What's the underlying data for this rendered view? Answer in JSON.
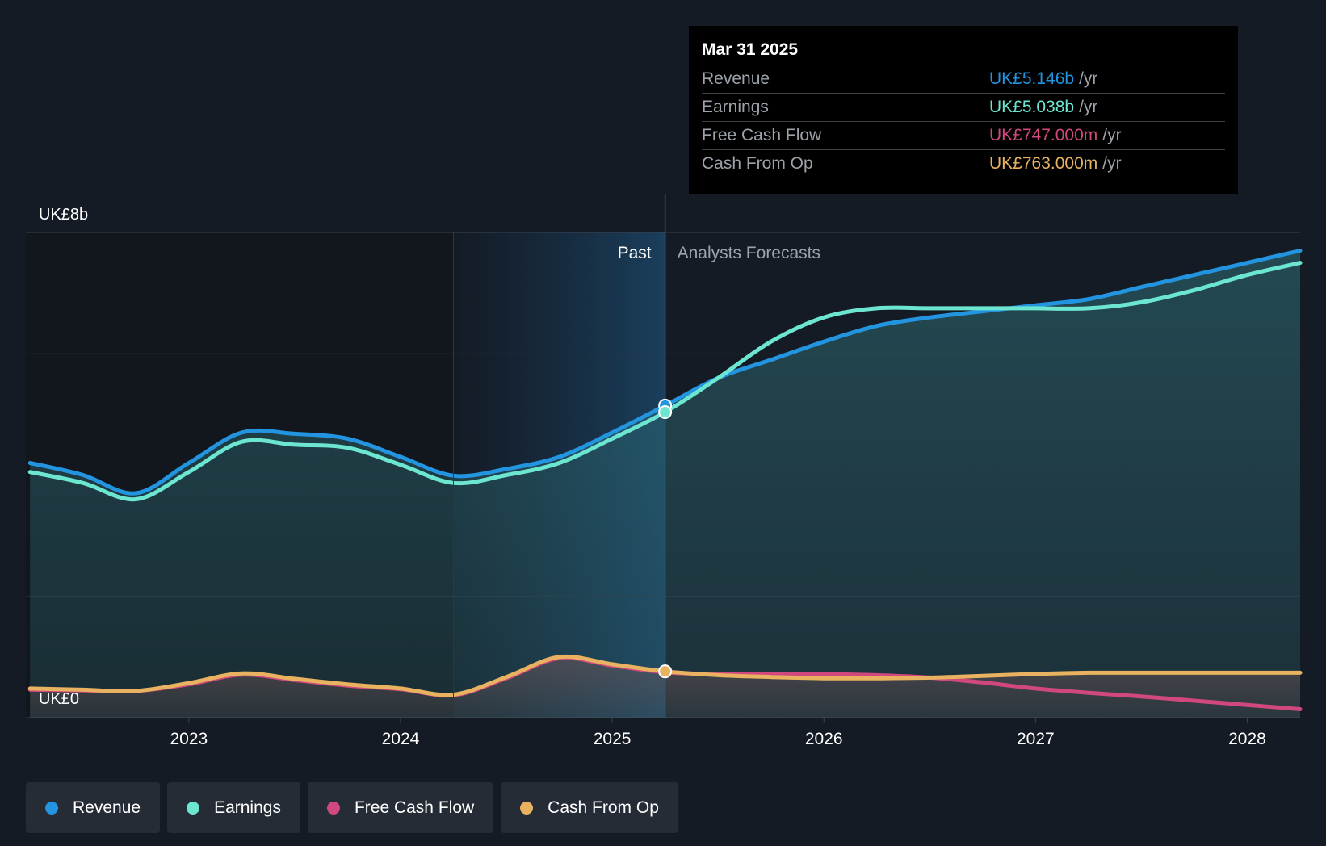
{
  "colors": {
    "revenue": "#2394df",
    "earnings": "#6ce6d0",
    "free_cash_flow": "#d0487d",
    "cash_from_op": "#e8b260",
    "background": "#151b24"
  },
  "tooltip": {
    "date": "Mar 31 2025",
    "rows": [
      {
        "label": "Revenue",
        "value": "UK£5.146b",
        "unit": "/yr"
      },
      {
        "label": "Earnings",
        "value": "UK£5.038b",
        "unit": "/yr"
      },
      {
        "label": "Free Cash Flow",
        "value": "UK£747.000m",
        "unit": "/yr"
      },
      {
        "label": "Cash From Op",
        "value": "UK£763.000m",
        "unit": "/yr"
      }
    ]
  },
  "legend": [
    {
      "label": "Revenue",
      "icon": "circle"
    },
    {
      "label": "Earnings",
      "icon": "circle"
    },
    {
      "label": "Free Cash Flow",
      "icon": "circle"
    },
    {
      "label": "Cash From Op",
      "icon": "circle"
    }
  ],
  "chart_data": {
    "type": "line",
    "title": "",
    "ylabel_top": "UK£8b",
    "ylabel_bottom": "UK£0",
    "ylim": [
      0,
      8
    ],
    "xlim": [
      2022.23,
      2028.25
    ],
    "x_ticks": [
      2023,
      2024,
      2025,
      2026,
      2027,
      2028
    ],
    "x_tick_labels": [
      "2023",
      "2024",
      "2025",
      "2026",
      "2027",
      "2028"
    ],
    "past_label": "Past",
    "forecast_label": "Analysts Forecasts",
    "past_highlight_start": 2024.25,
    "present": 2025.25,
    "series": [
      {
        "name": "Revenue",
        "key": "revenue",
        "points": [
          [
            2022.25,
            4.2
          ],
          [
            2022.5,
            4.0
          ],
          [
            2022.75,
            3.7
          ],
          [
            2023.0,
            4.2
          ],
          [
            2023.25,
            4.7
          ],
          [
            2023.5,
            4.68
          ],
          [
            2023.75,
            4.6
          ],
          [
            2024.0,
            4.3
          ],
          [
            2024.25,
            3.99
          ],
          [
            2024.5,
            4.1
          ],
          [
            2024.75,
            4.3
          ],
          [
            2025.0,
            4.7
          ],
          [
            2025.25,
            5.146
          ],
          [
            2025.5,
            5.6
          ],
          [
            2025.75,
            5.9
          ],
          [
            2026.0,
            6.2
          ],
          [
            2026.25,
            6.46
          ],
          [
            2026.5,
            6.6
          ],
          [
            2026.75,
            6.7
          ],
          [
            2027.0,
            6.8
          ],
          [
            2027.25,
            6.9
          ],
          [
            2027.5,
            7.1
          ],
          [
            2027.75,
            7.3
          ],
          [
            2028.0,
            7.5
          ],
          [
            2028.25,
            7.7
          ]
        ]
      },
      {
        "name": "Earnings",
        "key": "earnings",
        "points": [
          [
            2022.25,
            4.05
          ],
          [
            2022.5,
            3.87
          ],
          [
            2022.75,
            3.6
          ],
          [
            2023.0,
            4.05
          ],
          [
            2023.25,
            4.55
          ],
          [
            2023.5,
            4.5
          ],
          [
            2023.75,
            4.45
          ],
          [
            2024.0,
            4.17
          ],
          [
            2024.25,
            3.87
          ],
          [
            2024.5,
            4.0
          ],
          [
            2024.75,
            4.2
          ],
          [
            2025.0,
            4.6
          ],
          [
            2025.25,
            5.038
          ],
          [
            2025.5,
            5.6
          ],
          [
            2025.75,
            6.2
          ],
          [
            2026.0,
            6.6
          ],
          [
            2026.25,
            6.75
          ],
          [
            2026.5,
            6.75
          ],
          [
            2026.75,
            6.75
          ],
          [
            2027.0,
            6.75
          ],
          [
            2027.25,
            6.75
          ],
          [
            2027.5,
            6.85
          ],
          [
            2027.75,
            7.05
          ],
          [
            2028.0,
            7.3
          ],
          [
            2028.25,
            7.5
          ]
        ]
      },
      {
        "name": "Free Cash Flow",
        "key": "free_cash_flow",
        "points": [
          [
            2022.25,
            0.46
          ],
          [
            2022.5,
            0.45
          ],
          [
            2022.75,
            0.44
          ],
          [
            2023.0,
            0.55
          ],
          [
            2023.25,
            0.71
          ],
          [
            2023.5,
            0.62
          ],
          [
            2023.75,
            0.53
          ],
          [
            2024.0,
            0.47
          ],
          [
            2024.25,
            0.37
          ],
          [
            2024.5,
            0.65
          ],
          [
            2024.75,
            0.98
          ],
          [
            2025.0,
            0.86
          ],
          [
            2025.25,
            0.747
          ],
          [
            2025.5,
            0.72
          ],
          [
            2025.75,
            0.72
          ],
          [
            2026.0,
            0.72
          ],
          [
            2026.25,
            0.7
          ],
          [
            2026.5,
            0.66
          ],
          [
            2026.75,
            0.58
          ],
          [
            2027.0,
            0.48
          ],
          [
            2027.25,
            0.41
          ],
          [
            2027.5,
            0.35
          ],
          [
            2027.75,
            0.28
          ],
          [
            2028.0,
            0.21
          ],
          [
            2028.25,
            0.14
          ]
        ]
      },
      {
        "name": "Cash From Op",
        "key": "cash_from_op",
        "points": [
          [
            2022.25,
            0.48
          ],
          [
            2022.5,
            0.46
          ],
          [
            2022.75,
            0.44
          ],
          [
            2023.0,
            0.57
          ],
          [
            2023.25,
            0.73
          ],
          [
            2023.5,
            0.64
          ],
          [
            2023.75,
            0.55
          ],
          [
            2024.0,
            0.48
          ],
          [
            2024.25,
            0.38
          ],
          [
            2024.5,
            0.67
          ],
          [
            2024.75,
            1.0
          ],
          [
            2025.0,
            0.88
          ],
          [
            2025.25,
            0.763
          ],
          [
            2025.5,
            0.7
          ],
          [
            2025.75,
            0.67
          ],
          [
            2026.0,
            0.65
          ],
          [
            2026.25,
            0.65
          ],
          [
            2026.5,
            0.66
          ],
          [
            2026.75,
            0.69
          ],
          [
            2027.0,
            0.72
          ],
          [
            2027.25,
            0.74
          ],
          [
            2027.5,
            0.74
          ],
          [
            2027.75,
            0.74
          ],
          [
            2028.0,
            0.74
          ],
          [
            2028.25,
            0.74
          ]
        ]
      }
    ]
  }
}
